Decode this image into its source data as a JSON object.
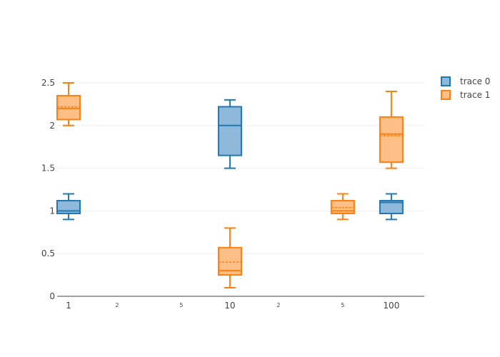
{
  "chart_data": {
    "type": "box",
    "x_axis": {
      "scale": "log",
      "range": [
        0.85,
        160
      ],
      "major_ticks": [
        {
          "value": 1,
          "label": "1"
        },
        {
          "value": 10,
          "label": "10"
        },
        {
          "value": 100,
          "label": "100"
        }
      ],
      "minor_ticks": [
        {
          "value": 2,
          "label": "2"
        },
        {
          "value": 5,
          "label": "5"
        },
        {
          "value": 20,
          "label": "2"
        },
        {
          "value": 50,
          "label": "5"
        }
      ]
    },
    "y_axis": {
      "range": [
        0,
        2.5
      ],
      "ticks": [
        {
          "value": 0,
          "label": "0"
        },
        {
          "value": 0.5,
          "label": "0.5"
        },
        {
          "value": 1,
          "label": "1"
        },
        {
          "value": 1.5,
          "label": "1.5"
        },
        {
          "value": 2,
          "label": "2"
        },
        {
          "value": 2.5,
          "label": "2.5"
        }
      ],
      "grid": true
    },
    "legend_position": "top-right",
    "series": [
      {
        "name": "trace 0",
        "color": "#1f77b4",
        "fill": "#8fb9da",
        "boxes": [
          {
            "x": 1,
            "min": 0.9,
            "q1": 0.97,
            "median": 1.0,
            "q3": 1.12,
            "max": 1.2
          },
          {
            "x": 10,
            "min": 1.5,
            "q1": 1.65,
            "median": 2.0,
            "q3": 2.22,
            "max": 2.3
          },
          {
            "x": 100,
            "min": 0.9,
            "q1": 0.97,
            "median": 1.1,
            "q3": 1.12,
            "max": 1.2
          }
        ]
      },
      {
        "name": "trace 1",
        "color": "#ff7f0e",
        "fill": "#ffbf86",
        "boxes": [
          {
            "x": 1,
            "min": 2.0,
            "q1": 2.07,
            "median": 2.2,
            "q3": 2.35,
            "max": 2.5,
            "mean": 2.22
          },
          {
            "x": 10,
            "min": 0.1,
            "q1": 0.25,
            "median": 0.3,
            "q3": 0.57,
            "max": 0.8,
            "mean": 0.4
          },
          {
            "x": 50,
            "min": 0.9,
            "q1": 0.97,
            "median": 1.0,
            "q3": 1.12,
            "max": 1.2,
            "mean": 1.04
          },
          {
            "x": 100,
            "min": 1.5,
            "q1": 1.57,
            "median": 1.9,
            "q3": 2.1,
            "max": 2.4,
            "mean": 1.88
          }
        ]
      }
    ]
  }
}
